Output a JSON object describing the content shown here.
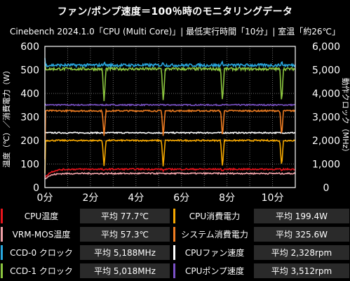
{
  "title": "ファン/ポンプ速度＝100％時のモニタリングデータ",
  "subtitle": "Cinebench 2024.1.0「CPU (Multi Core)」| 最低実行時間「10分」| 室温「約26℃」",
  "chart_data": {
    "type": "line",
    "title": "ファン/ポンプ速度＝100％時のモニタリングデータ",
    "xlabel": "",
    "ylabel_left": "温度（℃）／消費電力（W）",
    "ylabel_right": "動作クロック（MHz）",
    "x_ticks": [
      "0分",
      "2分",
      "4分",
      "6分",
      "8分",
      "10分"
    ],
    "x_range_min": [
      0,
      11
    ],
    "ylim_left": [
      0,
      600
    ],
    "y_ticks_left": [
      "0",
      "100",
      "200",
      "300",
      "400",
      "500",
      "600"
    ],
    "ylim_right": [
      0,
      6000
    ],
    "y_ticks_right": [
      "0",
      "1,000",
      "2,000",
      "3,000",
      "4,000",
      "5,000",
      "6,000"
    ],
    "grid": true,
    "dip_times_min": [
      0.05,
      2.6,
      5.2,
      7.8,
      10.4
    ],
    "series": [
      {
        "name": "CPU温度",
        "color": "#e8141c",
        "axis": "left",
        "avg": 77.7,
        "base": 78,
        "idle": 45,
        "dip_to": 72
      },
      {
        "name": "VRM-MOS温度",
        "color": "#f0a0a6",
        "axis": "left",
        "avg": 57.3,
        "base": 60,
        "idle": 40,
        "dip_to": 58
      },
      {
        "name": "CCD-0 クロック",
        "color": "#29a8e0",
        "axis": "right",
        "avg": 5188,
        "base": 5200,
        "idle": 5500,
        "dip_to": 5300
      },
      {
        "name": "CCD-1 クロック",
        "color": "#8cc63f",
        "axis": "right",
        "avg": 5018,
        "base": 5040,
        "idle": 5300,
        "dip_to": 3600
      },
      {
        "name": "CPU消費電力",
        "color": "#f6a800",
        "axis": "left",
        "avg": 199.4,
        "base": 200,
        "idle": 60,
        "dip_to": 85
      },
      {
        "name": "システム消費電力",
        "color": "#ef7d22",
        "axis": "left",
        "avg": 325.6,
        "base": 326,
        "idle": 120,
        "dip_to": 215
      },
      {
        "name": "CPUファン速度",
        "color": "#ffffff",
        "axis": "right",
        "avg": 2328,
        "base": 2328,
        "idle": 2328,
        "dip_to": 2328
      },
      {
        "name": "CPUポンプ速度",
        "color": "#7b52c8",
        "axis": "right",
        "avg": 3512,
        "base": 3512,
        "idle": 3512,
        "dip_to": 3512
      }
    ]
  },
  "legend": {
    "rows": [
      [
        {
          "name": "CPU温度",
          "value": "平均 77.7℃",
          "color": "#e8141c"
        },
        {
          "name": "CPU消費電力",
          "value": "平均 199.4W",
          "color": "#f6a800"
        }
      ],
      [
        {
          "name": "VRM-MOS温度",
          "value": "平均 57.3℃",
          "color": "#f0a0a6"
        },
        {
          "name": "システム消費電力",
          "value": "平均 325.6W",
          "color": "#ef7d22"
        }
      ],
      [
        {
          "name": "CCD-0 クロック",
          "value": "平均 5,188MHz",
          "color": "#29a8e0"
        },
        {
          "name": "CPUファン速度",
          "value": "平均 2,328rpm",
          "color": "#ffffff"
        }
      ],
      [
        {
          "name": "CCD-1 クロック",
          "value": "平均 5,018MHz",
          "color": "#8cc63f"
        },
        {
          "name": "CPUポンプ速度",
          "value": "平均 3,512rpm",
          "color": "#7b52c8"
        }
      ]
    ]
  }
}
